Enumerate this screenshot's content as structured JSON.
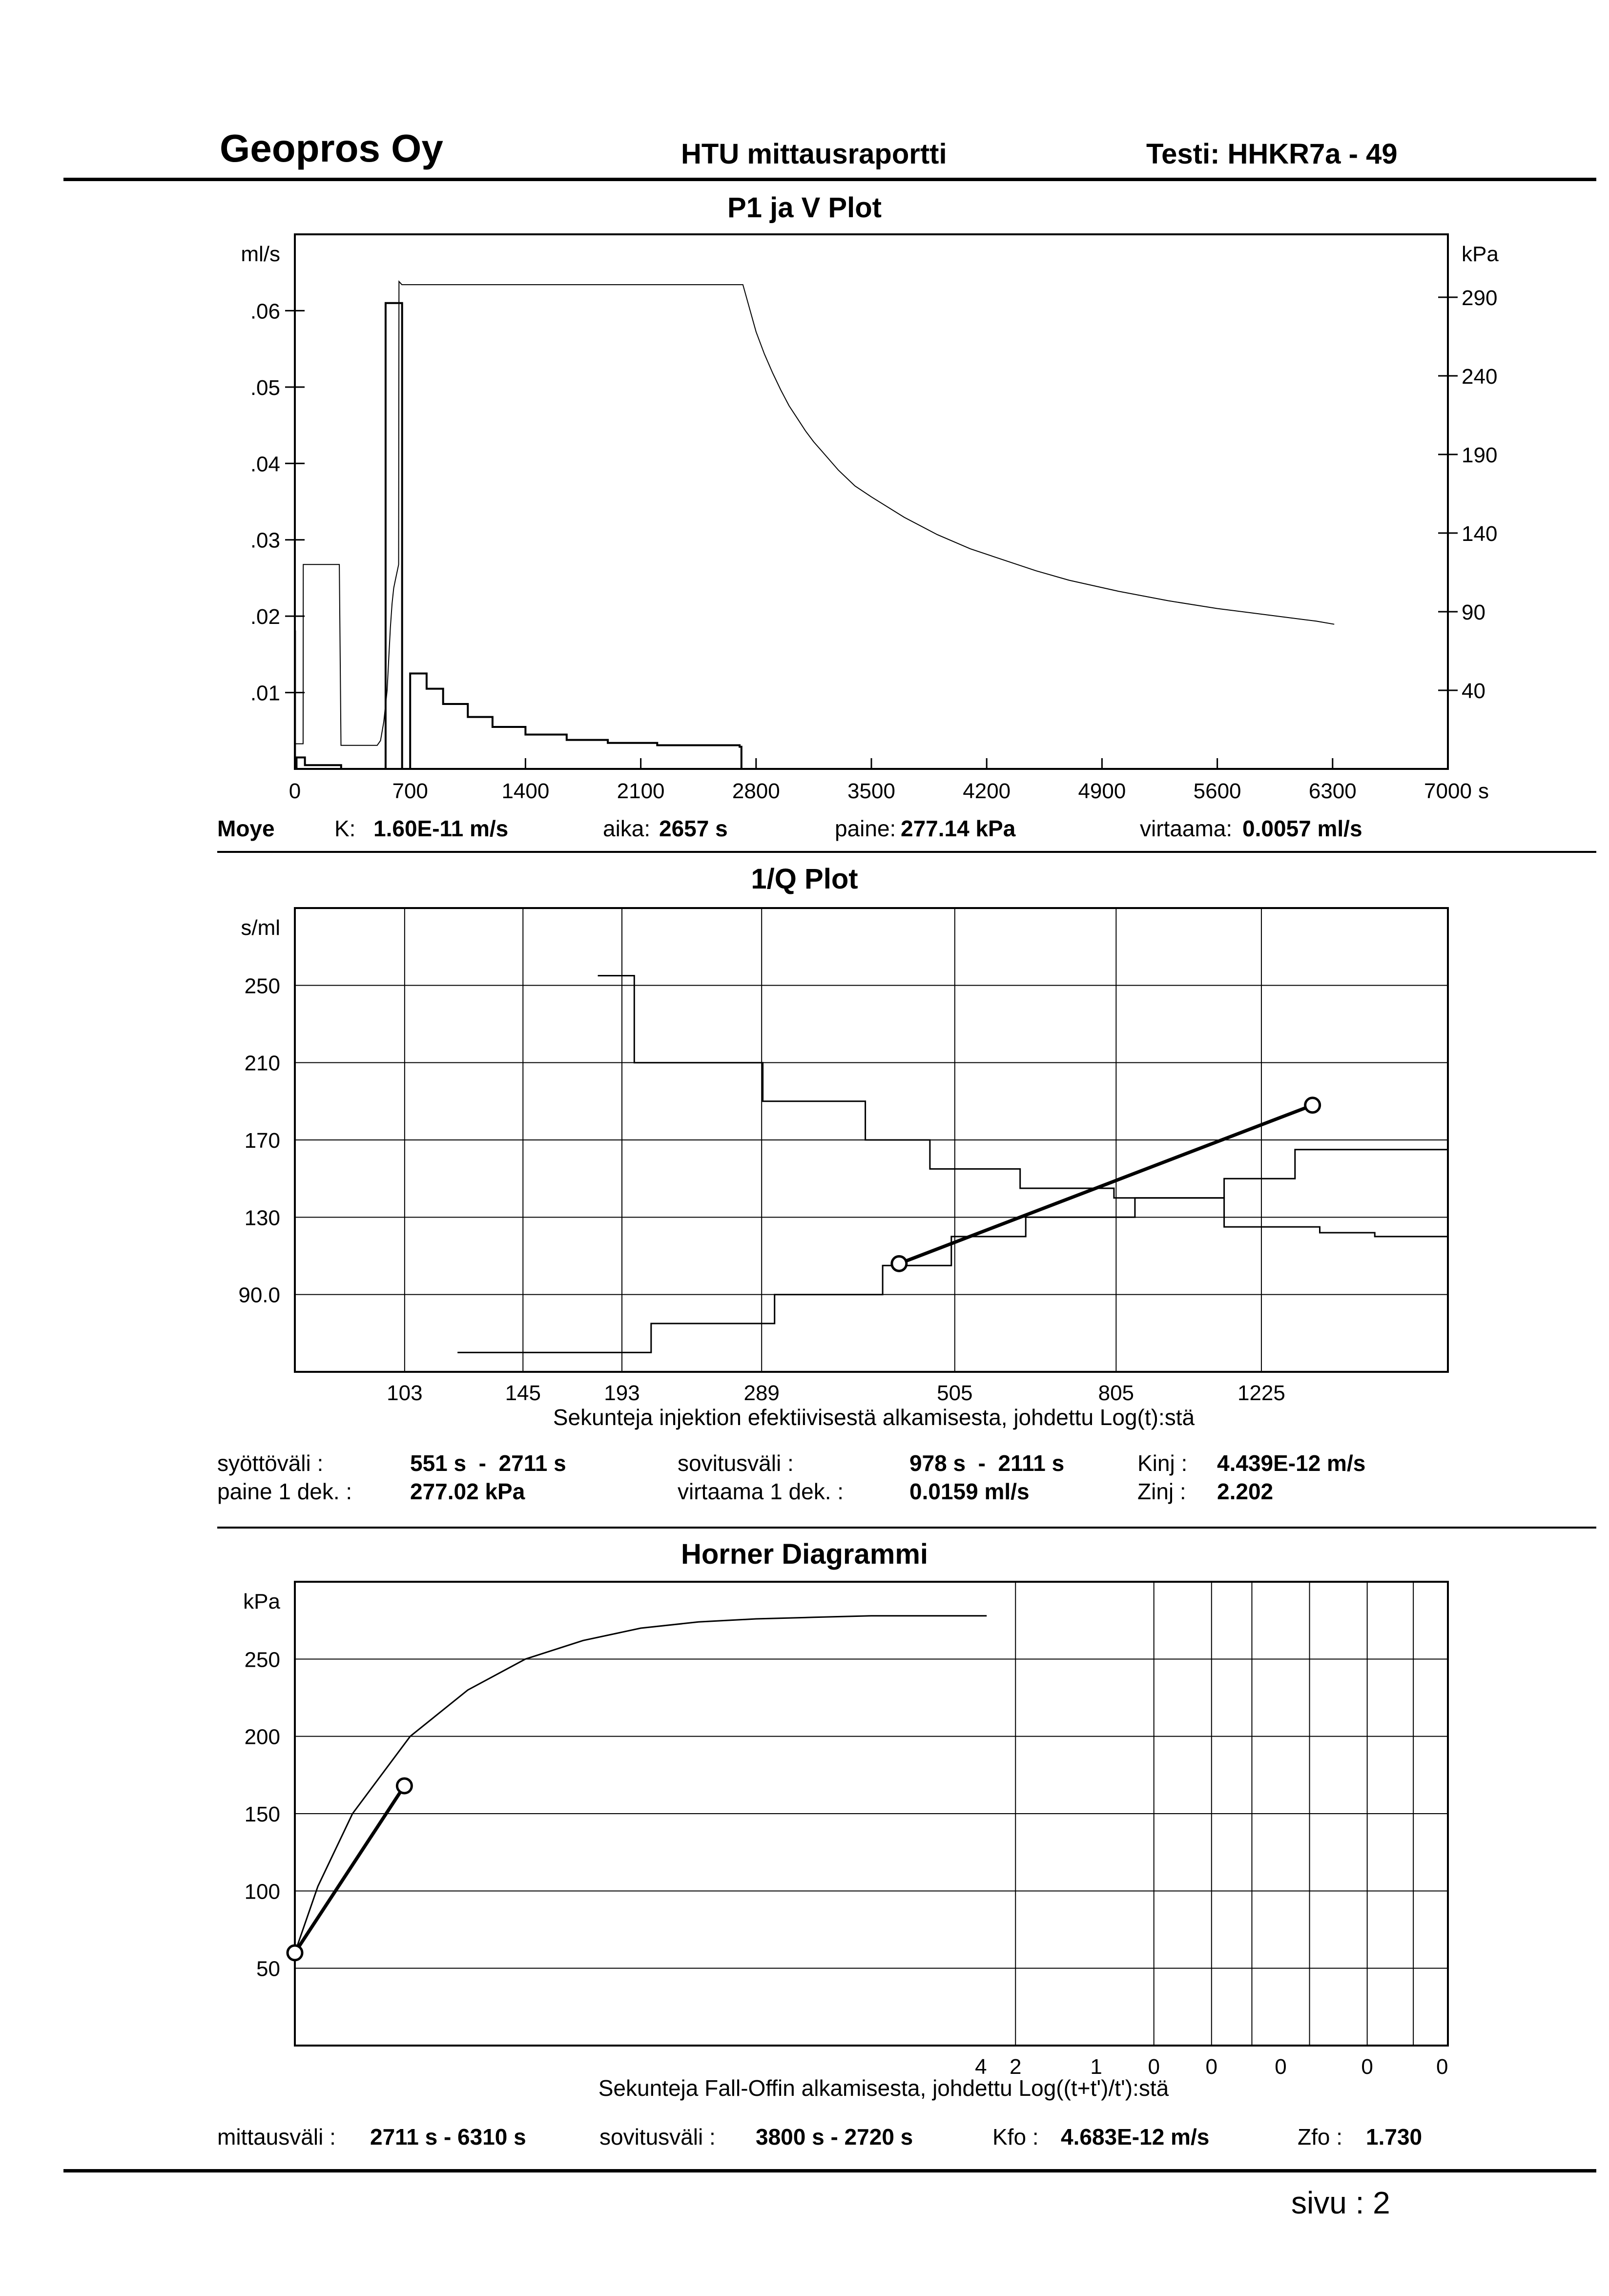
{
  "header": {
    "company": "Geopros Oy",
    "report": "HTU mittausraportti",
    "test": "Testi: HHKR7a - 49"
  },
  "plot1": {
    "title": "P1 ja V Plot",
    "left_unit": "ml/s",
    "right_unit": "kPa",
    "x_unit": "s",
    "x_ticks": [
      "0",
      "700",
      "1400",
      "2100",
      "2800",
      "3500",
      "4200",
      "4900",
      "5600",
      "6300",
      "7000"
    ],
    "y_left_ticks": [
      ".06",
      ".05",
      ".04",
      ".03",
      ".02",
      ".01"
    ],
    "y_right_ticks": [
      "290",
      "240",
      "190",
      "140",
      "90",
      "40"
    ],
    "params": {
      "method": "Moye",
      "k_label": "K:",
      "k_value": "1.60E-11 m/s",
      "time_label": "aika:",
      "time_value": "2657 s",
      "pressure_label": "paine:",
      "pressure_value": "277.14 kPa",
      "flow_label": "virtaama:",
      "flow_value": "0.0057 ml/s"
    }
  },
  "plot2": {
    "title": "1/Q Plot",
    "y_unit": "s/ml",
    "y_ticks": [
      "250",
      "210",
      "170",
      "130",
      "90.0"
    ],
    "x_ticks": [
      "103",
      "145",
      "193",
      "289",
      "505",
      "805",
      "1225"
    ],
    "x_title": "Sekunteja injektion efektiivisestä alkamisesta, johdettu Log(t):stä",
    "params": {
      "feed_label": "syöttöväli :",
      "feed_value": "551 s  -  2711 s",
      "fit_label": "sovitusväli :",
      "fit_value": "978 s  -  2111 s",
      "kinj_label": "Kinj :",
      "kinj_value": "4.439E-12 m/s",
      "p1_label": "paine 1 dek. :",
      "p1_value": "277.02 kPa",
      "q1_label": "virtaama 1 dek. :",
      "q1_value": "0.0159 ml/s",
      "zinj_label": "Zinj :",
      "zinj_value": "2.202"
    }
  },
  "plot3": {
    "title": "Horner Diagrammi",
    "y_unit": "kPa",
    "y_ticks": [
      "250",
      "200",
      "150",
      "100",
      "50"
    ],
    "x_ticks": [
      "4",
      "2",
      "1",
      "0",
      "0",
      "0",
      "0",
      "0"
    ],
    "x_title": "Sekunteja Fall-Offin alkamisesta, johdettu Log((t+t')/t'):stä",
    "params": {
      "range_label": "mittausväli :",
      "range_value": "2711 s - 6310 s",
      "fit_label": "sovitusväli :",
      "fit_value": "3800 s - 2720 s",
      "kfo_label": "Kfo :",
      "kfo_value": "4.683E-12 m/s",
      "zfo_label": "Zfo :",
      "zfo_value": "1.730"
    }
  },
  "footer": {
    "page_label": "sivu :",
    "page_number": "2"
  },
  "chart_data": [
    {
      "type": "line",
      "title": "P1 ja V Plot",
      "xlabel": "s",
      "ylabel": "ml/s",
      "y2label": "kPa",
      "xlim": [
        0,
        7000
      ],
      "ylim": [
        0,
        0.07
      ],
      "y2lim": [
        -10,
        330
      ],
      "series": [
        {
          "axis": "right",
          "step": false,
          "x": [
            0,
            50,
            51,
            270,
            280,
            500,
            520,
            540,
            560,
            570,
            580,
            590,
            600,
            610,
            630,
            632,
            650,
            800,
            1600,
            2720,
            2760,
            2800,
            2850,
            2900,
            2950,
            3000,
            3050,
            3100,
            3150,
            3200,
            3300,
            3400,
            3500,
            3700,
            3900,
            4100,
            4300,
            4500,
            4700,
            5000,
            5300,
            5600,
            5900,
            6200,
            6310
          ],
          "y": [
            6,
            6,
            120,
            120,
            5,
            5,
            8,
            20,
            40,
            60,
            80,
            95,
            105,
            110,
            120,
            300,
            298,
            298,
            298,
            298,
            283,
            268,
            254,
            242,
            231,
            221,
            213,
            205,
            198,
            192,
            180,
            170,
            163,
            150,
            139,
            130,
            123,
            116,
            110,
            103,
            97,
            92,
            88,
            84,
            82
          ]
        },
        {
          "axis": "left",
          "step": true,
          "x": [
            0,
            1,
            10,
            60,
            61,
            280,
            281,
            550,
            551,
            650,
            651,
            700,
            800,
            900,
            1050,
            1200,
            1400,
            1650,
            1900,
            2200,
            2700,
            2711
          ],
          "y": [
            0.018,
            0.0,
            0.0015,
            0.0015,
            0.0005,
            0.0005,
            0.0,
            0.0,
            0.061,
            0.061,
            0.0,
            0.0125,
            0.0105,
            0.0085,
            0.0068,
            0.0055,
            0.0045,
            0.0038,
            0.0034,
            0.0031,
            0.0029,
            0.0
          ]
        }
      ]
    },
    {
      "type": "line",
      "title": "1/Q Plot",
      "xlabel": "Sekunteja injektion efektiivisestä alkamisesta, johdettu Log(t):stä",
      "ylabel": "s/ml",
      "x_scale": "log",
      "xlim": [
        75,
        2100
      ],
      "ylim": [
        50,
        290
      ],
      "series": [
        {
          "step": true,
          "x": [
            120,
            193,
            210,
            300,
            410,
            500,
            620,
            850,
            1100,
            1350,
            2100
          ],
          "y": [
            60,
            60,
            75,
            90,
            105,
            120,
            130,
            140,
            150,
            165,
            175
          ]
        },
        {
          "step": true,
          "x": [
            180,
            200,
            290,
            390,
            470,
            610,
            800,
            1100,
            1450,
            1700,
            2100
          ],
          "y": [
            255,
            210,
            190,
            170,
            155,
            145,
            140,
            125,
            122,
            120,
            125
          ]
        },
        {
          "step": false,
          "x": [
            430,
            1420
          ],
          "y": [
            106,
            188
          ]
        }
      ]
    },
    {
      "type": "line",
      "title": "Horner Diagrammi",
      "xlabel": "Sekunteja Fall-Offin alkamisesta, johdettu Log((t+t')/t'):stä",
      "ylabel": "kPa",
      "xlim": [
        0,
        1
      ],
      "ylim": [
        0,
        300
      ],
      "series": [
        {
          "step": false,
          "x": [
            0.0,
            0.02,
            0.05,
            0.1,
            0.15,
            0.2,
            0.25,
            0.3,
            0.35,
            0.4,
            0.45,
            0.5,
            0.55,
            0.6
          ],
          "y": [
            60,
            103,
            150,
            200,
            230,
            250,
            262,
            270,
            274,
            276,
            277,
            278,
            278,
            278
          ]
        },
        {
          "step": false,
          "x": [
            0.0,
            0.095
          ],
          "y": [
            60,
            168
          ]
        }
      ]
    }
  ]
}
